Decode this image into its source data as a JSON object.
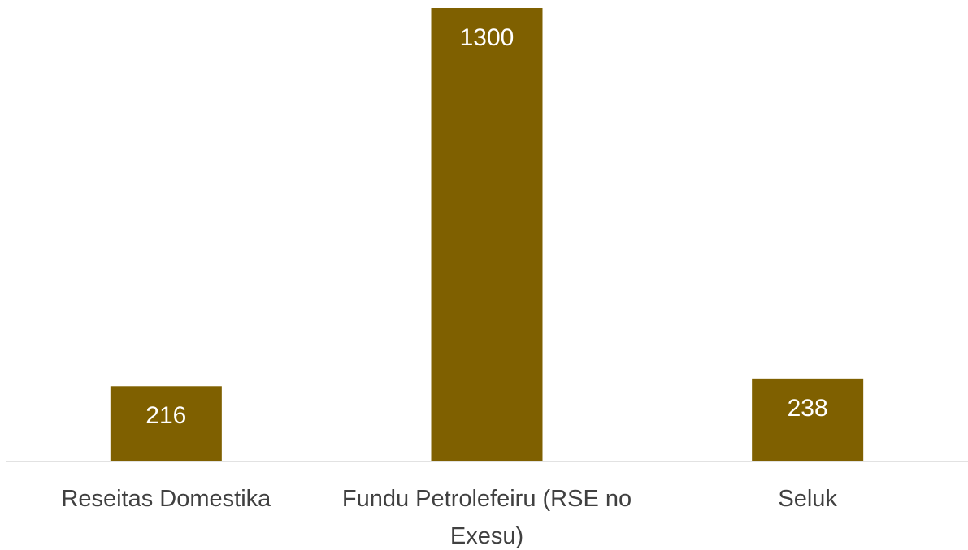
{
  "chart_data": {
    "type": "bar",
    "categories": [
      "Reseitas Domestika",
      "Fundu Petrolefeiru (RSE no Exesu)",
      "Seluk"
    ],
    "values": [
      216,
      1300,
      238
    ],
    "color": "#7f6000"
  }
}
